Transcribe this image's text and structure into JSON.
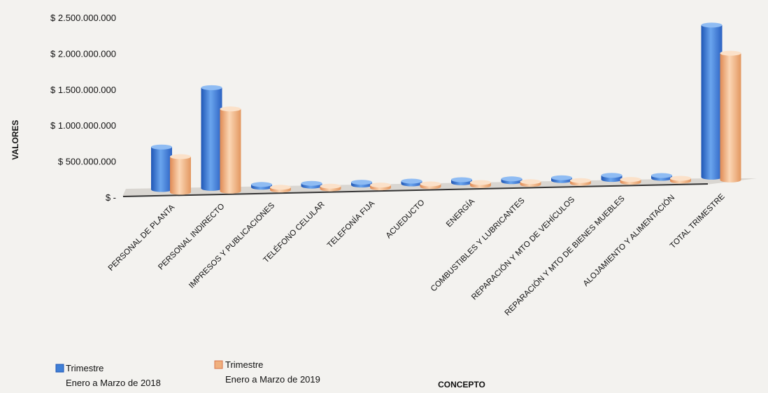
{
  "chart_data": {
    "type": "bar",
    "title": "",
    "xlabel": "CONCEPTO",
    "ylabel": "VALORES",
    "ylim": [
      0,
      2500000000
    ],
    "y_ticks": [
      {
        "value": 0,
        "label": "$ -"
      },
      {
        "value": 500000000,
        "label": "$ 500.000.000"
      },
      {
        "value": 1000000000,
        "label": "$ 1.000.000.000"
      },
      {
        "value": 1500000000,
        "label": "$ 1.500.000.000"
      },
      {
        "value": 2000000000,
        "label": "$ 2.000.000.000"
      },
      {
        "value": 2500000000,
        "label": "$ 2.500.000.000"
      }
    ],
    "categories": [
      "PERSONAL DE PLANTA",
      "PERSONAL INDIRECTO",
      "IMPRESOS Y PUBLICACIONES",
      "TELÉFONO CELULAR",
      "TELEFONÍA FIJA",
      "ACUEDUCTO",
      "ENERGÍA",
      "COMBUSTIBLES Y LUBRICANTES",
      "REPARACIÓN Y MTO DE VEHÍCULOS",
      "REPARACIÓN Y MTO DE BIENES MUEBLES",
      "ALOJAMIENTO Y ALIMENTACIÓN",
      "TOTAL TRIMESTRE"
    ],
    "series": [
      {
        "name": "Trimestre Enero a Marzo de 2018",
        "legend_line1": "Trimestre",
        "legend_line2": "Enero a Marzo de 2018",
        "color": "#3f7fd6",
        "values": [
          620000000,
          1470000000,
          15000000,
          20000000,
          25000000,
          35000000,
          45000000,
          40000000,
          35000000,
          60000000,
          30000000,
          2220000000
        ]
      },
      {
        "name": "Trimestre Enero a Marzo de 2019",
        "legend_line1": "Trimestre",
        "legend_line2": "Enero a Marzo de 2019",
        "color": "#f0b07e",
        "values": [
          520000000,
          1200000000,
          10000000,
          15000000,
          20000000,
          25000000,
          45000000,
          35000000,
          30000000,
          35000000,
          25000000,
          1850000000
        ]
      }
    ],
    "grid": false,
    "legend_position": "bottom-left",
    "style": "3d-cylinder"
  }
}
